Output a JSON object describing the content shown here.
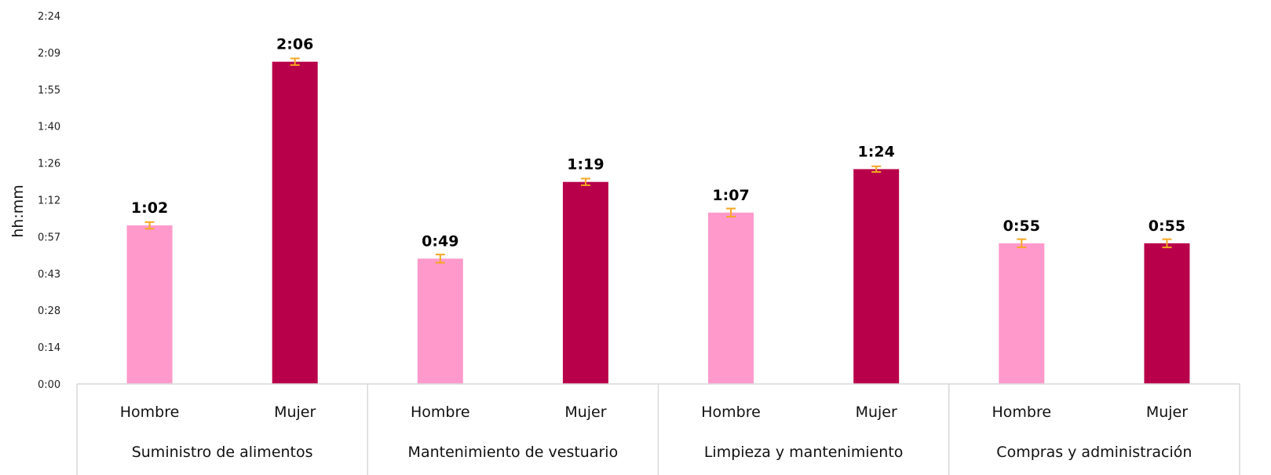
{
  "chart_data": {
    "type": "bar",
    "ylabel": "hh:mm",
    "y_unit": "minutes",
    "ylim": [
      0,
      144
    ],
    "yticks": [
      {
        "value": 0,
        "label": "0:00"
      },
      {
        "value": 14.4,
        "label": "0:14"
      },
      {
        "value": 28.8,
        "label": "0:28"
      },
      {
        "value": 43.2,
        "label": "0:43"
      },
      {
        "value": 57.6,
        "label": "0:57"
      },
      {
        "value": 72,
        "label": "1:12"
      },
      {
        "value": 86.4,
        "label": "1:26"
      },
      {
        "value": 100.8,
        "label": "1:40"
      },
      {
        "value": 115.2,
        "label": "1:55"
      },
      {
        "value": 129.6,
        "label": "2:09"
      },
      {
        "value": 144,
        "label": "2:24"
      }
    ],
    "groups": [
      {
        "name": "Suministro de alimentos",
        "bars": [
          {
            "category": "Hombre",
            "value": 62,
            "label": "1:02",
            "err": 1.3
          },
          {
            "category": "Mujer",
            "value": 126,
            "label": "2:06",
            "err": 1.3
          }
        ]
      },
      {
        "name": "Mantenimiento de vestuario",
        "bars": [
          {
            "category": "Hombre",
            "value": 49,
            "label": "0:49",
            "err": 1.6
          },
          {
            "category": "Mujer",
            "value": 79,
            "label": "1:19",
            "err": 1.3
          }
        ]
      },
      {
        "name": "Limpieza y mantenimiento",
        "bars": [
          {
            "category": "Hombre",
            "value": 67,
            "label": "1:07",
            "err": 1.6
          },
          {
            "category": "Mujer",
            "value": 84,
            "label": "1:24",
            "err": 1.1
          }
        ]
      },
      {
        "name": "Compras y administración",
        "bars": [
          {
            "category": "Hombre",
            "value": 55,
            "label": "0:55",
            "err": 1.6
          },
          {
            "category": "Mujer",
            "value": 55,
            "label": "0:55",
            "err": 1.6
          }
        ]
      }
    ],
    "colors": {
      "Hombre": "#ff99cc",
      "Mujer": "#b8004a",
      "error_bar": "#f5a623",
      "axis": "#d9d9d9"
    },
    "grid": false,
    "legend": "none"
  }
}
